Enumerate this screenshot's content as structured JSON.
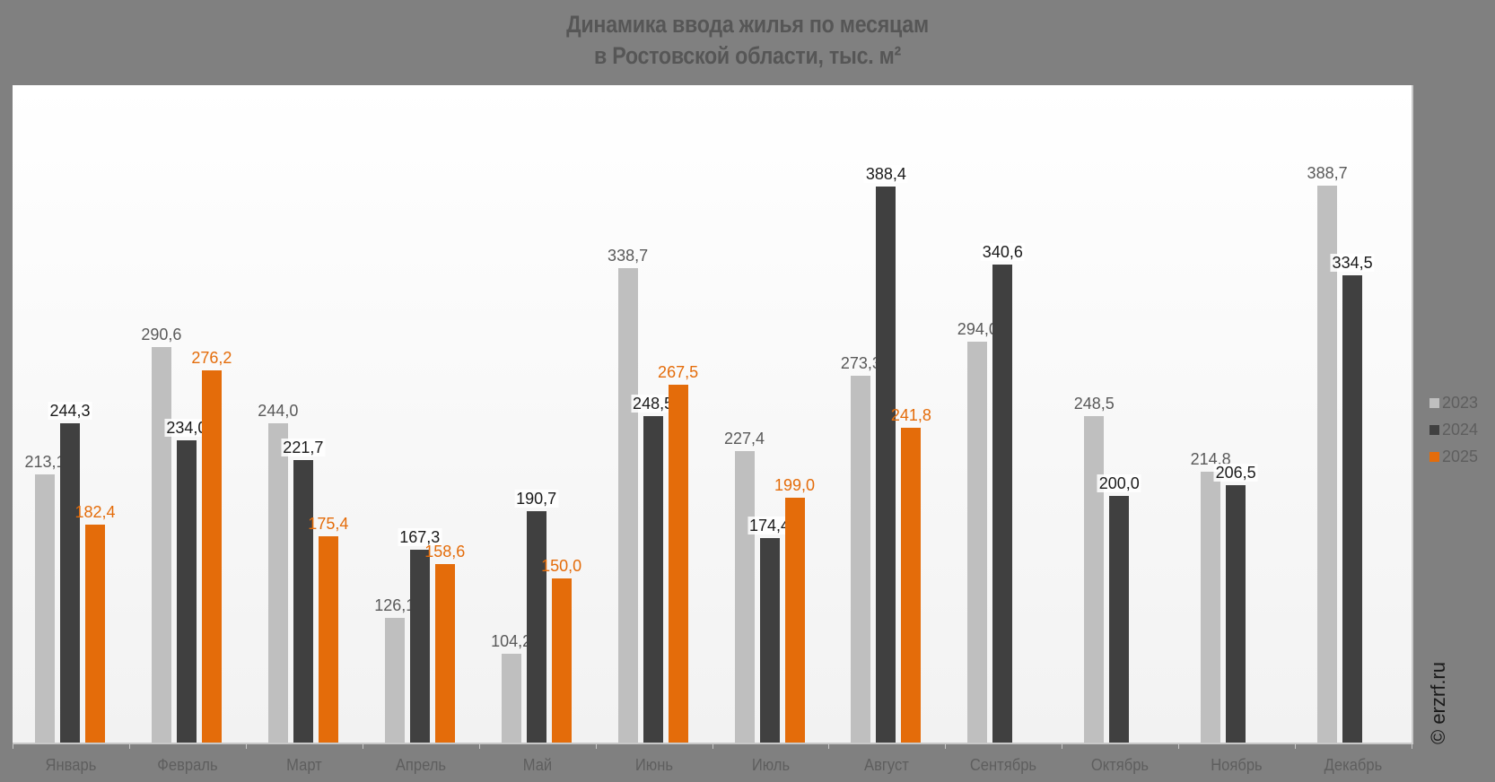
{
  "chart_data": {
    "type": "bar",
    "title": "Динамика ввода жилья по месяцам в Ростовской области, тыс. м²",
    "title_lines": [
      "Динамика ввода жилья по месяцам",
      "в Ростовской области, тыс. м²"
    ],
    "xlabel": "",
    "ylabel": "",
    "ylim": [
      50,
      450
    ],
    "grid": false,
    "legend_position": "right",
    "categories": [
      "Январь",
      "Февраль",
      "Март",
      "Апрель",
      "Май",
      "Июнь",
      "Июль",
      "Август",
      "Сентябрь",
      "Октябрь",
      "Ноябрь",
      "Декабрь"
    ],
    "series": [
      {
        "name": "2023",
        "color": "#bfbfbf",
        "label_color": "#595959",
        "values": [
          213.1,
          290.6,
          244.0,
          126.1,
          104.2,
          338.7,
          227.4,
          273.3,
          294.0,
          248.5,
          214.8,
          388.7
        ],
        "labels": [
          "213,1",
          "290,6",
          "244,0",
          "126,1",
          "104,2",
          "338,7",
          "227,4",
          "273,3",
          "294,0",
          "248,5",
          "214,8",
          "388,7"
        ]
      },
      {
        "name": "2024",
        "color": "#404040",
        "label_color": "#1a1a1a",
        "values": [
          244.3,
          234.0,
          221.7,
          167.3,
          190.7,
          248.5,
          174.4,
          388.4,
          340.6,
          200.0,
          206.5,
          334.5
        ],
        "labels": [
          "244,3",
          "234,0",
          "221,7",
          "167,3",
          "190,7",
          "248,5",
          "174,4",
          "388,4",
          "340,6",
          "200,0",
          "206,5",
          "334,5"
        ]
      },
      {
        "name": "2025",
        "color": "#e46c0a",
        "label_color": "#e46c0a",
        "values": [
          182.4,
          276.2,
          175.4,
          158.6,
          150.0,
          267.5,
          199.0,
          241.8,
          null,
          null,
          null,
          null
        ],
        "labels": [
          "182,4",
          "276,2",
          "175,4",
          "158,6",
          "150,0",
          "267,5",
          "199,0",
          "241,8",
          null,
          null,
          null,
          null
        ]
      }
    ]
  },
  "legend": {
    "items": [
      {
        "label": "2023",
        "color": "#bfbfbf"
      },
      {
        "label": "2024",
        "color": "#404040"
      },
      {
        "label": "2025",
        "color": "#e46c0a"
      }
    ]
  },
  "watermark": "© erzrf.ru"
}
